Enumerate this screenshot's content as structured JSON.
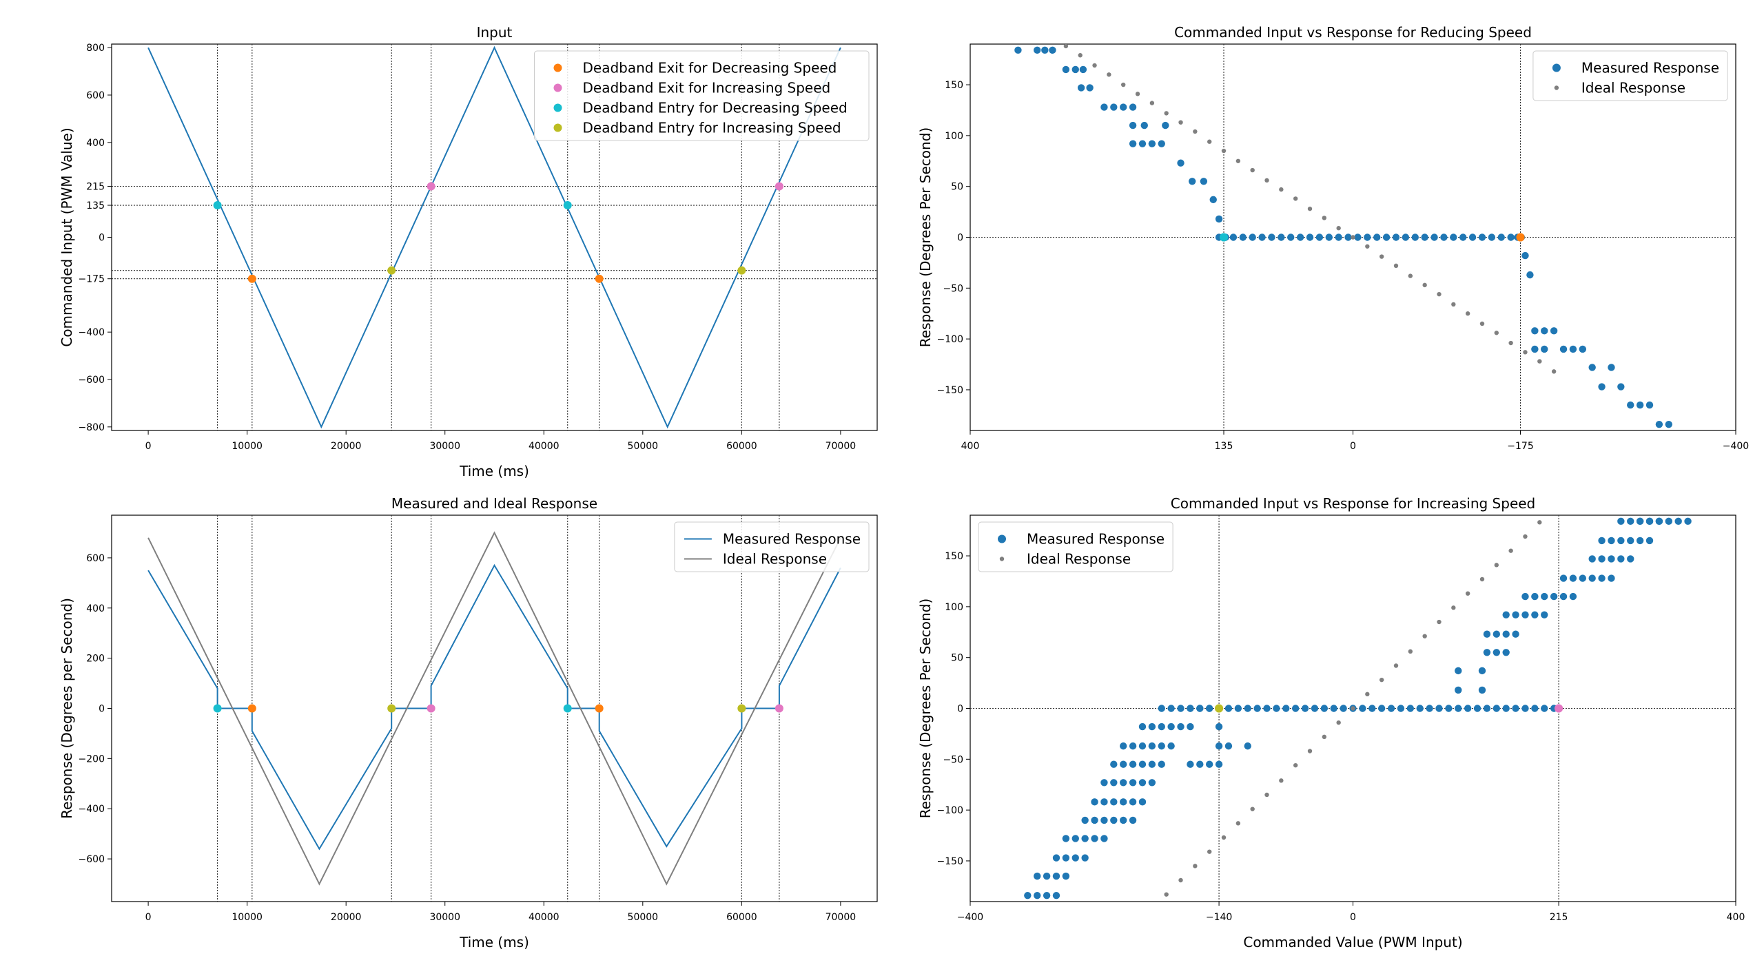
{
  "colors": {
    "measured": "#1f77b4",
    "ideal": "#7f7f7f",
    "exit_decreasing": "#ff7f0e",
    "exit_increasing": "#e377c2",
    "entry_decreasing": "#17becf",
    "entry_increasing": "#bcbd22",
    "guide": "#333333"
  },
  "chart_data": [
    {
      "id": "input",
      "type": "line",
      "title": "Input",
      "xlabel": "Time (ms)",
      "ylabel": "Commanded Input (PWM Value)",
      "xlim": [
        -3700,
        73700
      ],
      "ylim": [
        -815,
        815
      ],
      "xticks": [
        0,
        10000,
        20000,
        30000,
        40000,
        50000,
        60000,
        70000
      ],
      "yticks": [
        -800,
        -600,
        -400,
        -175,
        0,
        135,
        215,
        400,
        600,
        800
      ],
      "hlines": [
        215,
        135,
        -140,
        -175
      ],
      "vlines": [
        7000,
        10500,
        24600,
        28600,
        42400,
        45600,
        60000,
        63800
      ],
      "legend_position": "top-right",
      "series": [
        {
          "name": "Commanded Input",
          "legend": false,
          "x": [
            0,
            17500,
            35000,
            52500,
            70000
          ],
          "y": [
            800,
            -800,
            800,
            -800,
            800
          ]
        }
      ],
      "markers": [
        {
          "name": "Deadband Exit for Decreasing Speed",
          "x": [
            10500,
            45600
          ],
          "y": [
            -175,
            -175
          ]
        },
        {
          "name": "Deadband Exit for Increasing Speed",
          "x": [
            28600,
            63800
          ],
          "y": [
            215,
            215
          ]
        },
        {
          "name": "Deadband Entry for Decreasing Speed",
          "x": [
            7000,
            42400
          ],
          "y": [
            135,
            135
          ]
        },
        {
          "name": "Deadband Entry for Increasing Speed",
          "x": [
            24600,
            60000
          ],
          "y": [
            -140,
            -140
          ]
        }
      ]
    },
    {
      "id": "reduce",
      "type": "scatter",
      "title": "Commanded Input vs Response for Reducing Speed",
      "xlabel": "",
      "ylabel": "Response (Degrees Per Second)",
      "xlim": [
        400,
        -400
      ],
      "ylim": [
        -190,
        190
      ],
      "xticks": [
        400,
        135,
        0,
        -175,
        -400
      ],
      "yticks": [
        -150,
        -100,
        -50,
        0,
        50,
        100,
        150
      ],
      "hlines": [
        0
      ],
      "vlines": [
        135,
        -175
      ],
      "legend_position": "top-right",
      "series": [
        {
          "name": "Measured Response",
          "x": [
            350,
            330,
            322,
            314,
            300,
            290,
            282,
            284,
            275,
            260,
            250,
            240,
            230,
            230,
            218,
            196,
            230,
            220,
            210,
            200,
            180,
            168,
            156,
            146,
            140,
            140,
            136,
            135,
            133,
            125,
            115,
            105,
            95,
            85,
            75,
            65,
            55,
            45,
            35,
            25,
            15,
            5,
            -5,
            -15,
            -25,
            -35,
            -45,
            -55,
            -65,
            -75,
            -85,
            -95,
            -105,
            -115,
            -125,
            -135,
            -145,
            -155,
            -165,
            -172,
            -176,
            -180,
            -185,
            -190,
            -200,
            -190,
            -200,
            -210,
            -220,
            -230,
            -240,
            -250,
            -260,
            -270,
            -280,
            -290,
            -300,
            -310,
            -320,
            -330
          ],
          "y": [
            184,
            184,
            184,
            184,
            165,
            165,
            165,
            147,
            147,
            128,
            128,
            128,
            128,
            110,
            110,
            110,
            92,
            92,
            92,
            92,
            73,
            55,
            55,
            37,
            18,
            0,
            0,
            0,
            0,
            0,
            0,
            0,
            0,
            0,
            0,
            0,
            0,
            0,
            0,
            0,
            0,
            0,
            0,
            0,
            0,
            0,
            0,
            0,
            0,
            0,
            0,
            0,
            0,
            0,
            0,
            0,
            0,
            0,
            0,
            0,
            0,
            -18,
            -37,
            -92,
            -92,
            -110,
            -110,
            -92,
            -110,
            -110,
            -110,
            -128,
            -147,
            -128,
            -147,
            -165,
            -165,
            -165,
            -184,
            -184
          ]
        },
        {
          "name": "Ideal Response",
          "x": [
            330,
            315,
            300,
            285,
            270,
            255,
            240,
            225,
            210,
            195,
            180,
            165,
            150,
            135,
            120,
            105,
            90,
            75,
            60,
            45,
            30,
            15,
            0,
            -15,
            -30,
            -45,
            -60,
            -75,
            -90,
            -105,
            -120,
            -135,
            -150,
            -165,
            -180,
            -195,
            -210
          ],
          "y": [
            207,
            198,
            188,
            179,
            169,
            160,
            150,
            141,
            132,
            122,
            113,
            104,
            94,
            85,
            75,
            66,
            56,
            47,
            38,
            28,
            19,
            9,
            0,
            -9,
            -19,
            -28,
            -38,
            -47,
            -56,
            -66,
            -75,
            -85,
            -94,
            -104,
            -113,
            -122,
            -132
          ]
        }
      ],
      "markers": [
        {
          "name": "Deadband Entry for Decreasing Speed",
          "x": [
            135,
            135
          ],
          "y": [
            0,
            0
          ]
        },
        {
          "name": "Deadband Exit for Decreasing Speed",
          "x": [
            -175,
            -175
          ],
          "y": [
            0,
            0
          ]
        }
      ]
    },
    {
      "id": "response",
      "type": "line",
      "title": "Measured and Ideal Response",
      "xlabel": "Time (ms)",
      "ylabel": "Response (Degrees per Second)",
      "xlim": [
        -3700,
        73700
      ],
      "ylim": [
        -770,
        770
      ],
      "xticks": [
        0,
        10000,
        20000,
        30000,
        40000,
        50000,
        60000,
        70000
      ],
      "yticks": [
        -600,
        -400,
        -200,
        0,
        200,
        400,
        600
      ],
      "hlines": [],
      "vlines": [
        7000,
        10500,
        24600,
        28600,
        42400,
        45600,
        60000,
        63800
      ],
      "legend_position": "top-right",
      "series": [
        {
          "name": "Measured Response",
          "x": [
            0,
            7000,
            7000,
            10500,
            10500,
            17300,
            24600,
            24600,
            28600,
            28600,
            35000,
            42400,
            42400,
            45600,
            45600,
            52400,
            60000,
            60000,
            63800,
            63800,
            70000
          ],
          "y": [
            550,
            80,
            0,
            0,
            -90,
            -560,
            -80,
            0,
            0,
            90,
            570,
            80,
            0,
            0,
            -90,
            -550,
            -80,
            0,
            0,
            90,
            560
          ]
        },
        {
          "name": "Ideal Response",
          "x": [
            0,
            17300,
            35000,
            52400,
            70000
          ],
          "y": [
            680,
            -700,
            700,
            -700,
            680
          ]
        }
      ],
      "markers": [
        {
          "name": "Deadband Entry for Decreasing Speed",
          "x": [
            7000,
            42400
          ],
          "y": [
            0,
            0
          ]
        },
        {
          "name": "Deadband Exit for Decreasing Speed",
          "x": [
            10500,
            45600
          ],
          "y": [
            0,
            0
          ]
        },
        {
          "name": "Deadband Entry for Increasing Speed",
          "x": [
            24600,
            60000
          ],
          "y": [
            0,
            0
          ]
        },
        {
          "name": "Deadband Exit for Increasing Speed",
          "x": [
            28600,
            63800
          ],
          "y": [
            0,
            0
          ]
        }
      ]
    },
    {
      "id": "increase",
      "type": "scatter",
      "title": "Commanded Input vs Response for Increasing Speed",
      "xlabel": "Commanded Value (PWM Input)",
      "ylabel": "Response (Degrees Per Second)",
      "xlim": [
        -400,
        400
      ],
      "ylim": [
        -190,
        190
      ],
      "xticks": [
        -400,
        -140,
        0,
        215,
        400
      ],
      "yticks": [
        -150,
        -100,
        -50,
        0,
        50,
        100,
        150
      ],
      "hlines": [
        0
      ],
      "vlines": [
        -140,
        215
      ],
      "legend_position": "top-left",
      "series": [
        {
          "name": "Measured Response",
          "x": [
            -340,
            -330,
            -320,
            -310,
            -330,
            -320,
            -310,
            -300,
            -310,
            -300,
            -290,
            -280,
            -300,
            -290,
            -280,
            -270,
            -260,
            -280,
            -270,
            -260,
            -250,
            -240,
            -230,
            -270,
            -260,
            -250,
            -240,
            -230,
            -220,
            -260,
            -250,
            -240,
            -230,
            -220,
            -210,
            -250,
            -240,
            -230,
            -220,
            -210,
            -200,
            -240,
            -230,
            -220,
            -210,
            -200,
            -190,
            -220,
            -210,
            -200,
            -190,
            -180,
            -170,
            -200,
            -190,
            -180,
            -170,
            -160,
            -150,
            -170,
            -160,
            -150,
            -140,
            -140,
            -130,
            -140,
            -140,
            -110,
            -170,
            -160,
            -150,
            -140,
            -130,
            -120,
            -110,
            -100,
            -90,
            -80,
            -70,
            -60,
            -50,
            -40,
            -30,
            -20,
            -10,
            0,
            10,
            20,
            30,
            40,
            50,
            60,
            70,
            80,
            90,
            100,
            110,
            120,
            130,
            140,
            150,
            160,
            170,
            180,
            190,
            200,
            210,
            215,
            110,
            110,
            135,
            135,
            140,
            150,
            160,
            140,
            150,
            160,
            170,
            160,
            170,
            180,
            190,
            200,
            180,
            190,
            200,
            210,
            220,
            230,
            220,
            230,
            240,
            250,
            260,
            270,
            250,
            260,
            270,
            280,
            290,
            260,
            270,
            280,
            290,
            300,
            310,
            280,
            290,
            300,
            310,
            320,
            300,
            310,
            320,
            330,
            340,
            350
          ],
          "y": [
            -184,
            -184,
            -184,
            -184,
            -165,
            -165,
            -165,
            -165,
            -147,
            -147,
            -147,
            -147,
            -128,
            -128,
            -128,
            -128,
            -128,
            -110,
            -110,
            -110,
            -110,
            -110,
            -110,
            -92,
            -92,
            -92,
            -92,
            -92,
            -92,
            -73,
            -73,
            -73,
            -73,
            -73,
            -73,
            -55,
            -55,
            -55,
            -55,
            -55,
            -55,
            -37,
            -37,
            -37,
            -37,
            -37,
            -37,
            -18,
            -18,
            -18,
            -18,
            -18,
            -18,
            0,
            0,
            0,
            0,
            0,
            0,
            -55,
            -55,
            -55,
            -55,
            -37,
            -37,
            -18,
            0,
            -37,
            0,
            0,
            0,
            0,
            0,
            0,
            0,
            0,
            0,
            0,
            0,
            0,
            0,
            0,
            0,
            0,
            0,
            0,
            0,
            0,
            0,
            0,
            0,
            0,
            0,
            0,
            0,
            0,
            0,
            0,
            0,
            0,
            0,
            0,
            0,
            0,
            0,
            0,
            0,
            0,
            18,
            37,
            18,
            37,
            55,
            55,
            55,
            73,
            73,
            73,
            73,
            92,
            92,
            92,
            92,
            92,
            110,
            110,
            110,
            110,
            110,
            110,
            128,
            128,
            128,
            128,
            128,
            128,
            147,
            147,
            147,
            147,
            147,
            165,
            165,
            165,
            165,
            165,
            165,
            184,
            184,
            184,
            184,
            184,
            184,
            184,
            184,
            184,
            184,
            184
          ]
        },
        {
          "name": "Ideal Response",
          "x": [
            -210,
            -195,
            -180,
            -165,
            -150,
            -135,
            -120,
            -105,
            -90,
            -75,
            -60,
            -45,
            -30,
            -15,
            0,
            15,
            30,
            45,
            60,
            75,
            90,
            105,
            120,
            135,
            150,
            165,
            180,
            195,
            210
          ],
          "y": [
            -197,
            -183,
            -169,
            -155,
            -141,
            -127,
            -113,
            -99,
            -85,
            -71,
            -56,
            -42,
            -28,
            -14,
            0,
            14,
            28,
            42,
            56,
            71,
            85,
            99,
            113,
            127,
            141,
            155,
            169,
            183,
            197
          ]
        }
      ],
      "markers": [
        {
          "name": "Deadband Entry for Increasing Speed",
          "x": [
            -140,
            -140
          ],
          "y": [
            0,
            0
          ]
        },
        {
          "name": "Deadband Exit for Increasing Speed",
          "x": [
            215,
            215
          ],
          "y": [
            0,
            0
          ]
        }
      ]
    }
  ]
}
